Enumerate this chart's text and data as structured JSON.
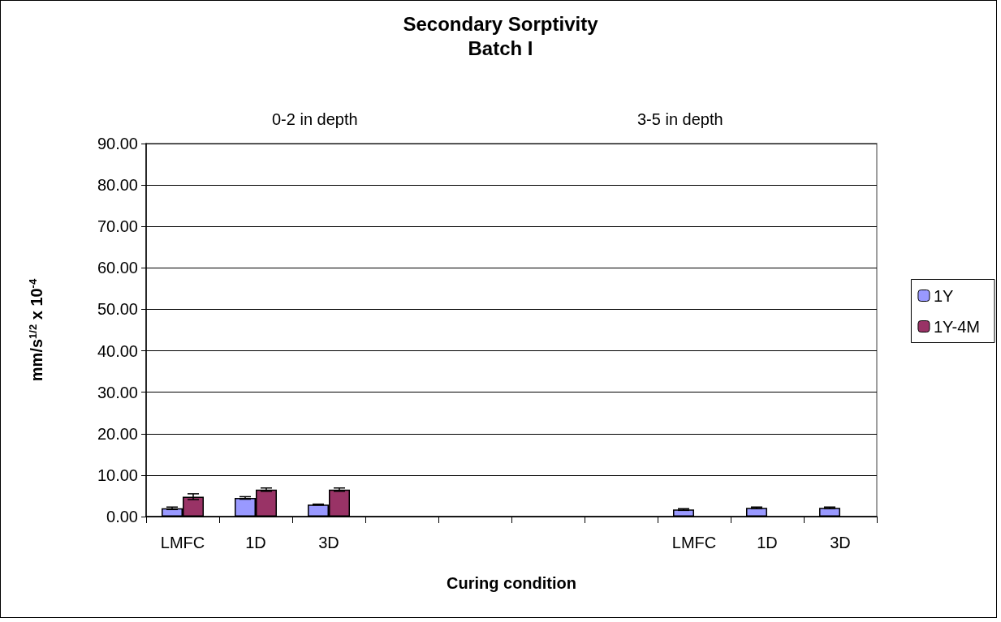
{
  "chart_data": {
    "type": "bar",
    "title": "Secondary Sorptivity",
    "subtitle": "Batch I",
    "xlabel": "Curing condition",
    "ylabel": "mm/s$^{1/2}$ x 10$^{-4}$",
    "annotations": [
      "0-2 in depth",
      "3-5 in depth"
    ],
    "categories": [
      "LMFC",
      "1D",
      "3D",
      null,
      null,
      null,
      null,
      "LMFC",
      "1D",
      "3D"
    ],
    "series": [
      {
        "name": "1Y",
        "color": "#9999ff",
        "values": [
          2.0,
          4.5,
          2.9,
          null,
          null,
          null,
          null,
          1.7,
          2.1,
          2.1
        ],
        "errors": [
          0.3,
          0.3,
          0.1,
          null,
          null,
          null,
          null,
          0.2,
          0.2,
          0.2
        ]
      },
      {
        "name": "1Y-4M",
        "color": "#993366",
        "values": [
          4.8,
          6.5,
          6.5,
          null,
          null,
          null,
          null,
          null,
          null,
          null
        ],
        "errors": [
          0.7,
          0.4,
          0.4,
          null,
          null,
          null,
          null,
          null,
          null,
          null
        ]
      }
    ],
    "ylim": [
      0,
      90
    ],
    "yticks": [
      {
        "value": 0,
        "label": "0.00"
      },
      {
        "value": 10,
        "label": "10.00"
      },
      {
        "value": 20,
        "label": "20.00"
      },
      {
        "value": 30,
        "label": "30.00"
      },
      {
        "value": 40,
        "label": "40.00"
      },
      {
        "value": 50,
        "label": "50.00"
      },
      {
        "value": 60,
        "label": "60.00"
      },
      {
        "value": 70,
        "label": "70.00"
      },
      {
        "value": 80,
        "label": "80.00"
      },
      {
        "value": 90,
        "label": "90.00"
      }
    ],
    "grid": "y",
    "legend": "right"
  }
}
